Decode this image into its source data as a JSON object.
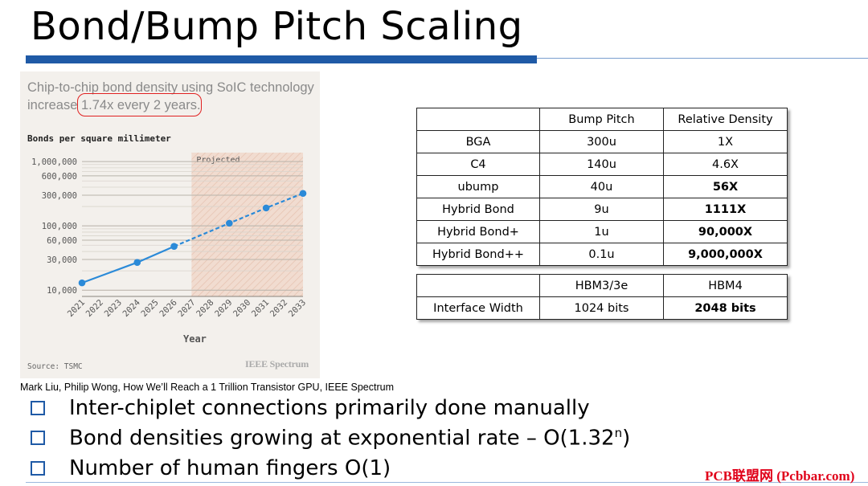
{
  "slide": {
    "title": "Bond/Bump Pitch Scaling",
    "caption": "Mark Liu, Philip Wong, How We’ll Reach a 1 Trillion Transistor GPU, IEEE Spectrum",
    "watermark": "PCB联盟网 (Pcbbar.com)",
    "accent_color": "#1f5aa6",
    "bullets": [
      {
        "text": "Inter-chiplet connections primarily done manually"
      },
      {
        "text": "Bond densities growing at exponential rate – O(1.32",
        "sup": "n",
        "tail": ")"
      },
      {
        "text": "Number of human fingers O(1)"
      }
    ]
  },
  "chart_data": {
    "type": "line",
    "headline_prefix": "Chip-to-chip bond density using SoIC technology increase ",
    "headline_highlight": "1.74x every 2 years",
    "headline_suffix": ".",
    "title": "Bonds per square millimeter",
    "xlabel": "Year",
    "source": "Source: TSMC",
    "brand": "IEEE Spectrum",
    "projected_label": "Projected",
    "y_scale": "log",
    "ylim": [
      8000,
      1300000
    ],
    "y_ticks": [
      {
        "value": 10000,
        "label": "10,000"
      },
      {
        "value": 30000,
        "label": "30,000"
      },
      {
        "value": 60000,
        "label": "60,000"
      },
      {
        "value": 100000,
        "label": "100,000"
      },
      {
        "value": 300000,
        "label": "300,000"
      },
      {
        "value": 600000,
        "label": "600,000"
      },
      {
        "value": 1000000,
        "label": "1,000,000"
      }
    ],
    "x_ticks": [
      "2021",
      "2022",
      "2023",
      "2024",
      "2025",
      "2026",
      "2027",
      "2028",
      "2029",
      "2030",
      "2031",
      "2032",
      "2033"
    ],
    "projected_from": 2027,
    "series_color": "#2b8ad8",
    "actual": [
      {
        "x": 2021,
        "y": 13000
      },
      {
        "x": 2024,
        "y": 27000
      },
      {
        "x": 2026,
        "y": 48000
      }
    ],
    "projected": [
      {
        "x": 2026,
        "y": 48000
      },
      {
        "x": 2029,
        "y": 110000
      },
      {
        "x": 2031,
        "y": 190000
      },
      {
        "x": 2033,
        "y": 320000
      }
    ]
  },
  "tables": {
    "bump": {
      "headers": [
        "",
        "Bump Pitch",
        "Relative Density"
      ],
      "rows": [
        [
          "BGA",
          "300u",
          "1X"
        ],
        [
          "C4",
          "140u",
          "4.6X"
        ],
        [
          "ubump",
          "40u",
          "56X"
        ],
        [
          "Hybrid Bond",
          "9u",
          "1111X"
        ],
        [
          "Hybrid Bond+",
          "1u",
          "90,000X"
        ],
        [
          "Hybrid Bond++",
          "0.1u",
          "9,000,000X"
        ]
      ]
    },
    "hbm": {
      "headers": [
        "",
        "HBM3/3e",
        "HBM4"
      ],
      "rows": [
        [
          "Interface Width",
          "1024 bits",
          "2048 bits"
        ]
      ]
    }
  }
}
